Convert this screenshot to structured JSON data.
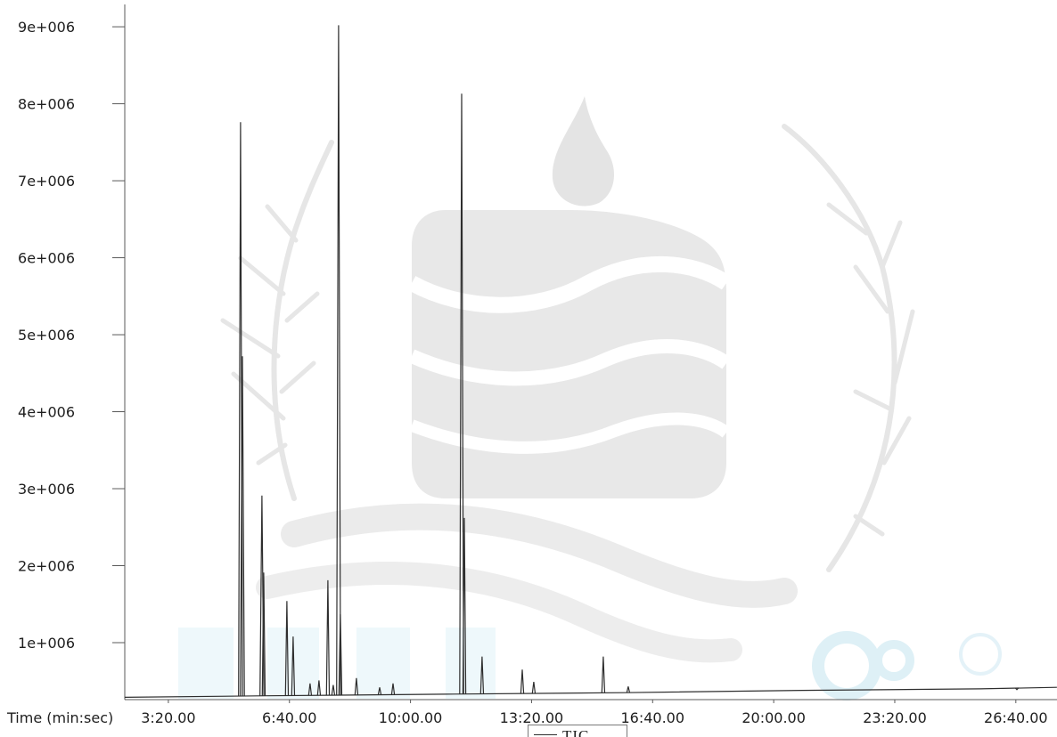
{
  "chart_data": {
    "type": "line",
    "xlabel": "Time (min:sec)",
    "xlim": [
      "2:08.00",
      "27:48.00"
    ],
    "ylim": [
      260000,
      9290000
    ],
    "grid": false,
    "x_ticks": [
      "3:20.00",
      "6:40.00",
      "10:00.00",
      "13:20.00",
      "16:40.00",
      "20:00.00",
      "23:20.00",
      "26:40.00"
    ],
    "y_ticks": [
      {
        "value": 1000000,
        "label": "1e+006"
      },
      {
        "value": 2000000,
        "label": "2e+006"
      },
      {
        "value": 3000000,
        "label": "3e+006"
      },
      {
        "value": 4000000,
        "label": "4e+006"
      },
      {
        "value": 5000000,
        "label": "5e+006"
      },
      {
        "value": 6000000,
        "label": "6e+006"
      },
      {
        "value": 7000000,
        "label": "7e+006"
      },
      {
        "value": 8000000,
        "label": "8e+006"
      },
      {
        "value": 9000000,
        "label": "9e+006"
      }
    ],
    "legend": {
      "position": "bottom-center"
    },
    "series": [
      {
        "name": "TIC",
        "color": "#2e2e2e",
        "baseline": [
          [
            "2:08.00",
            290000
          ],
          [
            "6:03.70",
            310000
          ],
          [
            "10:58.10",
            330000
          ],
          [
            "15:52.50",
            350000
          ],
          [
            "20:46.90",
            380000
          ],
          [
            "25:41.30",
            400000
          ],
          [
            "27:47.90",
            420000
          ]
        ],
        "peaks": [
          [
            "5:19.30",
            7760000
          ],
          [
            "5:22.40",
            4720000
          ],
          [
            "5:54.60",
            2910000
          ],
          [
            "5:57.60",
            1910000
          ],
          [
            "6:35.80",
            1540000
          ],
          [
            "6:46.10",
            1080000
          ],
          [
            "7:14.10",
            470000
          ],
          [
            "7:28.80",
            510000
          ],
          [
            "7:43.50",
            1810000
          ],
          [
            "7:52.40",
            450000
          ],
          [
            "8:01.20",
            9020000
          ],
          [
            "8:04.20",
            1370000
          ],
          [
            "8:30.70",
            540000
          ],
          [
            "9:09.00",
            420000
          ],
          [
            "9:31.10",
            470000
          ],
          [
            "11:24.50",
            8130000
          ],
          [
            "11:28.90",
            2620000
          ],
          [
            "11:58.30",
            820000
          ],
          [
            "13:04.60",
            650000
          ],
          [
            "13:23.70",
            490000
          ],
          [
            "15:18.50",
            820000
          ],
          [
            "15:59.70",
            430000
          ],
          [
            "26:41.70",
            390000
          ]
        ]
      }
    ]
  }
}
